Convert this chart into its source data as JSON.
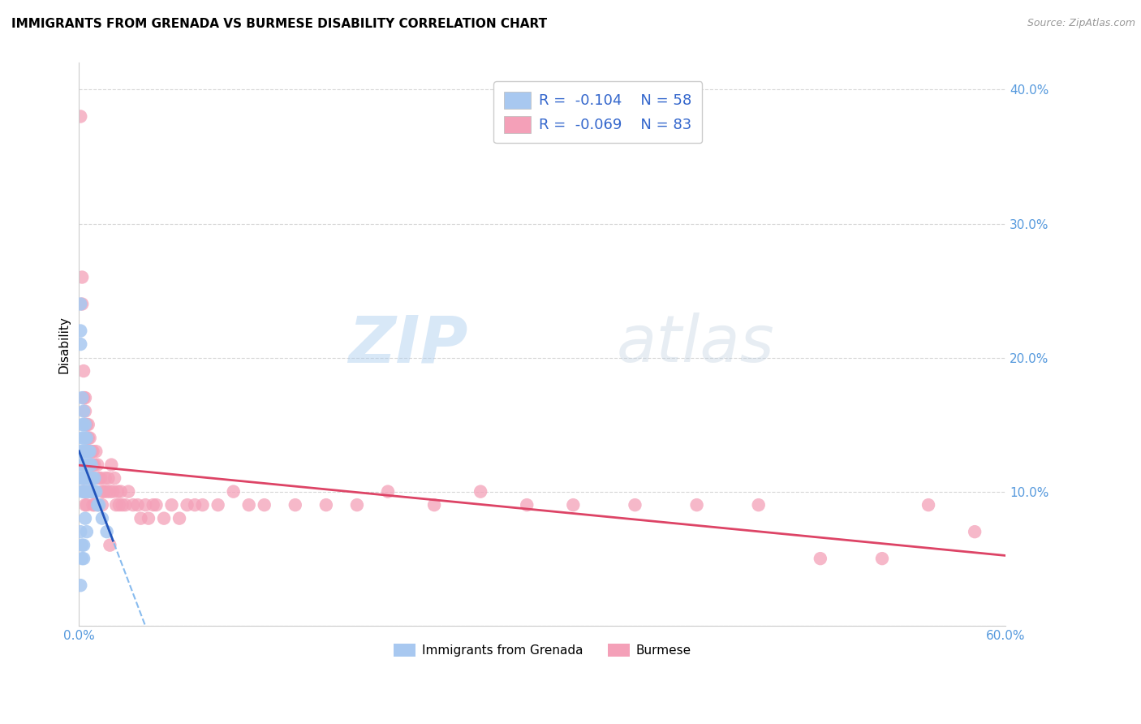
{
  "title": "IMMIGRANTS FROM GRENADA VS BURMESE DISABILITY CORRELATION CHART",
  "source": "Source: ZipAtlas.com",
  "ylabel": "Disability",
  "x_min": 0.0,
  "x_max": 0.6,
  "y_min": 0.0,
  "y_max": 0.42,
  "x_ticks": [
    0.0,
    0.1,
    0.2,
    0.3,
    0.4,
    0.5,
    0.6
  ],
  "x_tick_labels_shown": [
    "0.0%",
    "",
    "",
    "",
    "",
    "",
    "60.0%"
  ],
  "y_ticks": [
    0.0,
    0.1,
    0.2,
    0.3,
    0.4
  ],
  "y_tick_labels": [
    "",
    "10.0%",
    "20.0%",
    "30.0%",
    "40.0%"
  ],
  "blue_R": -0.104,
  "blue_N": 58,
  "pink_R": -0.069,
  "pink_N": 83,
  "blue_color": "#a8c8f0",
  "pink_color": "#f4a0b8",
  "blue_line_color": "#2255bb",
  "pink_line_color": "#dd4466",
  "blue_dash_color": "#88bbee",
  "watermark_zip": "ZIP",
  "watermark_atlas": "atlas",
  "legend_label_blue": "Immigrants from Grenada",
  "legend_label_pink": "Burmese",
  "blue_x": [
    0.001,
    0.001,
    0.001,
    0.001,
    0.001,
    0.001,
    0.002,
    0.002,
    0.002,
    0.002,
    0.002,
    0.002,
    0.002,
    0.003,
    0.003,
    0.003,
    0.003,
    0.003,
    0.003,
    0.003,
    0.004,
    0.004,
    0.004,
    0.004,
    0.004,
    0.004,
    0.005,
    0.005,
    0.005,
    0.005,
    0.005,
    0.006,
    0.006,
    0.006,
    0.006,
    0.007,
    0.007,
    0.007,
    0.008,
    0.008,
    0.008,
    0.009,
    0.009,
    0.01,
    0.01,
    0.011,
    0.012,
    0.013,
    0.015,
    0.018,
    0.001,
    0.001,
    0.002,
    0.002,
    0.003,
    0.003,
    0.004,
    0.005
  ],
  "blue_y": [
    0.24,
    0.22,
    0.21,
    0.13,
    0.12,
    0.11,
    0.17,
    0.15,
    0.14,
    0.13,
    0.12,
    0.11,
    0.1,
    0.16,
    0.15,
    0.14,
    0.13,
    0.12,
    0.11,
    0.1,
    0.15,
    0.14,
    0.13,
    0.12,
    0.11,
    0.1,
    0.14,
    0.13,
    0.12,
    0.11,
    0.1,
    0.13,
    0.12,
    0.11,
    0.1,
    0.13,
    0.12,
    0.11,
    0.12,
    0.11,
    0.1,
    0.11,
    0.1,
    0.11,
    0.1,
    0.1,
    0.09,
    0.09,
    0.08,
    0.07,
    0.07,
    0.03,
    0.06,
    0.05,
    0.06,
    0.05,
    0.08,
    0.07
  ],
  "pink_x": [
    0.001,
    0.002,
    0.002,
    0.003,
    0.003,
    0.004,
    0.004,
    0.005,
    0.005,
    0.005,
    0.006,
    0.006,
    0.007,
    0.007,
    0.008,
    0.008,
    0.009,
    0.009,
    0.01,
    0.01,
    0.011,
    0.012,
    0.013,
    0.014,
    0.015,
    0.016,
    0.017,
    0.018,
    0.019,
    0.02,
    0.021,
    0.022,
    0.023,
    0.024,
    0.025,
    0.026,
    0.027,
    0.028,
    0.03,
    0.032,
    0.035,
    0.038,
    0.04,
    0.043,
    0.045,
    0.048,
    0.05,
    0.055,
    0.06,
    0.065,
    0.07,
    0.075,
    0.08,
    0.09,
    0.1,
    0.11,
    0.12,
    0.14,
    0.16,
    0.18,
    0.2,
    0.23,
    0.26,
    0.29,
    0.32,
    0.36,
    0.4,
    0.44,
    0.48,
    0.52,
    0.55,
    0.58,
    0.003,
    0.004,
    0.005,
    0.006,
    0.007,
    0.008,
    0.009,
    0.01,
    0.012,
    0.015,
    0.02
  ],
  "pink_y": [
    0.38,
    0.26,
    0.24,
    0.19,
    0.17,
    0.17,
    0.16,
    0.15,
    0.14,
    0.13,
    0.15,
    0.13,
    0.14,
    0.13,
    0.13,
    0.12,
    0.13,
    0.12,
    0.12,
    0.11,
    0.13,
    0.12,
    0.11,
    0.11,
    0.1,
    0.1,
    0.11,
    0.1,
    0.11,
    0.1,
    0.12,
    0.1,
    0.11,
    0.09,
    0.1,
    0.09,
    0.1,
    0.09,
    0.09,
    0.1,
    0.09,
    0.09,
    0.08,
    0.09,
    0.08,
    0.09,
    0.09,
    0.08,
    0.09,
    0.08,
    0.09,
    0.09,
    0.09,
    0.09,
    0.1,
    0.09,
    0.09,
    0.09,
    0.09,
    0.09,
    0.1,
    0.09,
    0.1,
    0.09,
    0.09,
    0.09,
    0.09,
    0.09,
    0.05,
    0.05,
    0.09,
    0.07,
    0.1,
    0.09,
    0.09,
    0.14,
    0.1,
    0.1,
    0.09,
    0.09,
    0.09,
    0.09,
    0.06
  ]
}
